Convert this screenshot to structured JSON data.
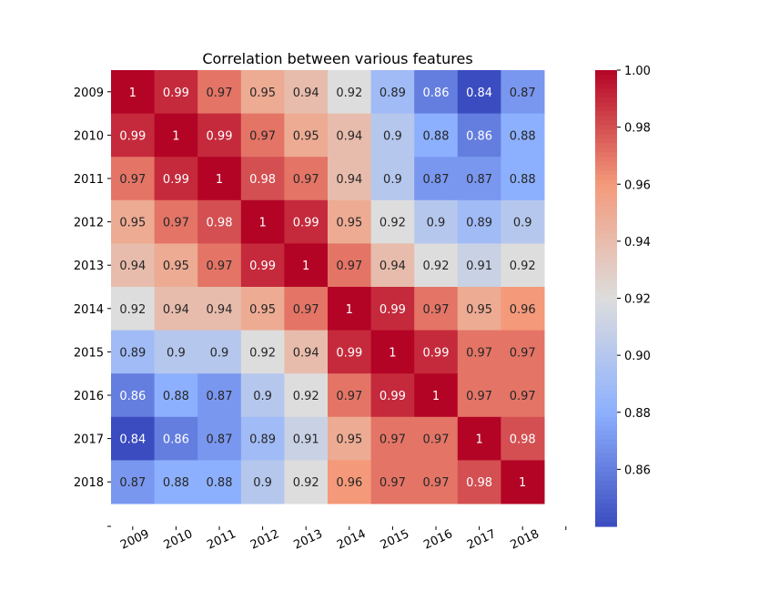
{
  "chart_data": {
    "type": "heatmap",
    "title": "Correlation between various features",
    "xlabel": "",
    "ylabel": "",
    "x_categories": [
      "2009",
      "2010",
      "2011",
      "2012",
      "2013",
      "2014",
      "2015",
      "2016",
      "2017",
      "2018"
    ],
    "y_categories": [
      "2009",
      "2010",
      "2011",
      "2012",
      "2013",
      "2014",
      "2015",
      "2016",
      "2017",
      "2018"
    ],
    "values": [
      [
        1,
        0.99,
        0.97,
        0.95,
        0.94,
        0.92,
        0.89,
        0.86,
        0.84,
        0.87
      ],
      [
        0.99,
        1,
        0.99,
        0.97,
        0.95,
        0.94,
        0.9,
        0.88,
        0.86,
        0.88
      ],
      [
        0.97,
        0.99,
        1,
        0.98,
        0.97,
        0.94,
        0.9,
        0.87,
        0.87,
        0.88
      ],
      [
        0.95,
        0.97,
        0.98,
        1,
        0.99,
        0.95,
        0.92,
        0.9,
        0.89,
        0.9
      ],
      [
        0.94,
        0.95,
        0.97,
        0.99,
        1,
        0.97,
        0.94,
        0.92,
        0.91,
        0.92
      ],
      [
        0.92,
        0.94,
        0.94,
        0.95,
        0.97,
        1,
        0.99,
        0.97,
        0.95,
        0.96
      ],
      [
        0.89,
        0.9,
        0.9,
        0.92,
        0.94,
        0.99,
        1,
        0.99,
        0.97,
        0.97
      ],
      [
        0.86,
        0.88,
        0.87,
        0.9,
        0.92,
        0.97,
        0.99,
        1,
        0.97,
        0.97
      ],
      [
        0.84,
        0.86,
        0.87,
        0.89,
        0.91,
        0.95,
        0.97,
        0.97,
        1,
        0.98
      ],
      [
        0.87,
        0.88,
        0.88,
        0.9,
        0.92,
        0.96,
        0.97,
        0.97,
        0.98,
        1
      ]
    ],
    "colormap": "coolwarm",
    "value_range": [
      0.84,
      1.0
    ],
    "colorbar": {
      "ticks": [
        "0.86",
        "0.88",
        "0.90",
        "0.92",
        "0.94",
        "0.96",
        "0.98",
        "1.00"
      ],
      "placement": "right"
    },
    "grid": false
  }
}
